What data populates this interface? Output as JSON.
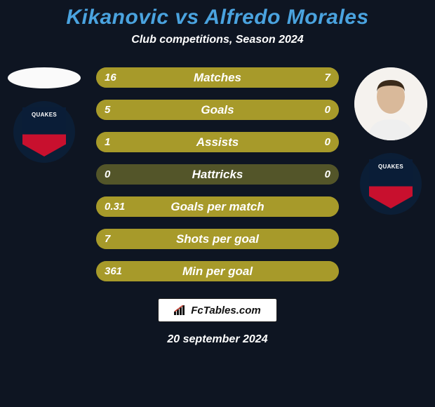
{
  "colors": {
    "background": "#0e1522",
    "text": "#ffffff",
    "bar_track": "#535529",
    "bar_fill": "#a79a2a",
    "title_color": "#4aa3df"
  },
  "title": {
    "text": "Kikanovic vs Alfredo Morales",
    "fontsize": 30
  },
  "subtitle": {
    "text": "Club competitions, Season 2024",
    "fontsize": 16
  },
  "left": {
    "player": "Kikanovic",
    "club_label": "QUAKES",
    "avatar_flat": true
  },
  "right": {
    "player": "Alfredo Morales",
    "club_label": "QUAKES",
    "avatar_flat": false
  },
  "bars": {
    "label_fontsize": 17,
    "value_fontsize": 15,
    "rows": [
      {
        "label": "Matches",
        "left": "16",
        "right": "7",
        "left_ratio": 0.7,
        "right_ratio": 0.3
      },
      {
        "label": "Goals",
        "left": "5",
        "right": "0",
        "left_ratio": 1.0,
        "right_ratio": 0.0
      },
      {
        "label": "Assists",
        "left": "1",
        "right": "0",
        "left_ratio": 1.0,
        "right_ratio": 0.0
      },
      {
        "label": "Hattricks",
        "left": "0",
        "right": "0",
        "left_ratio": 0.0,
        "right_ratio": 0.0
      },
      {
        "label": "Goals per match",
        "left": "0.31",
        "right": "",
        "left_ratio": 1.0,
        "right_ratio": 0.0
      },
      {
        "label": "Shots per goal",
        "left": "7",
        "right": "",
        "left_ratio": 1.0,
        "right_ratio": 0.0
      },
      {
        "label": "Min per goal",
        "left": "361",
        "right": "",
        "left_ratio": 1.0,
        "right_ratio": 0.0
      }
    ]
  },
  "brand": {
    "text": "FcTables.com"
  },
  "footer_date": {
    "text": "20 september 2024",
    "fontsize": 16
  }
}
